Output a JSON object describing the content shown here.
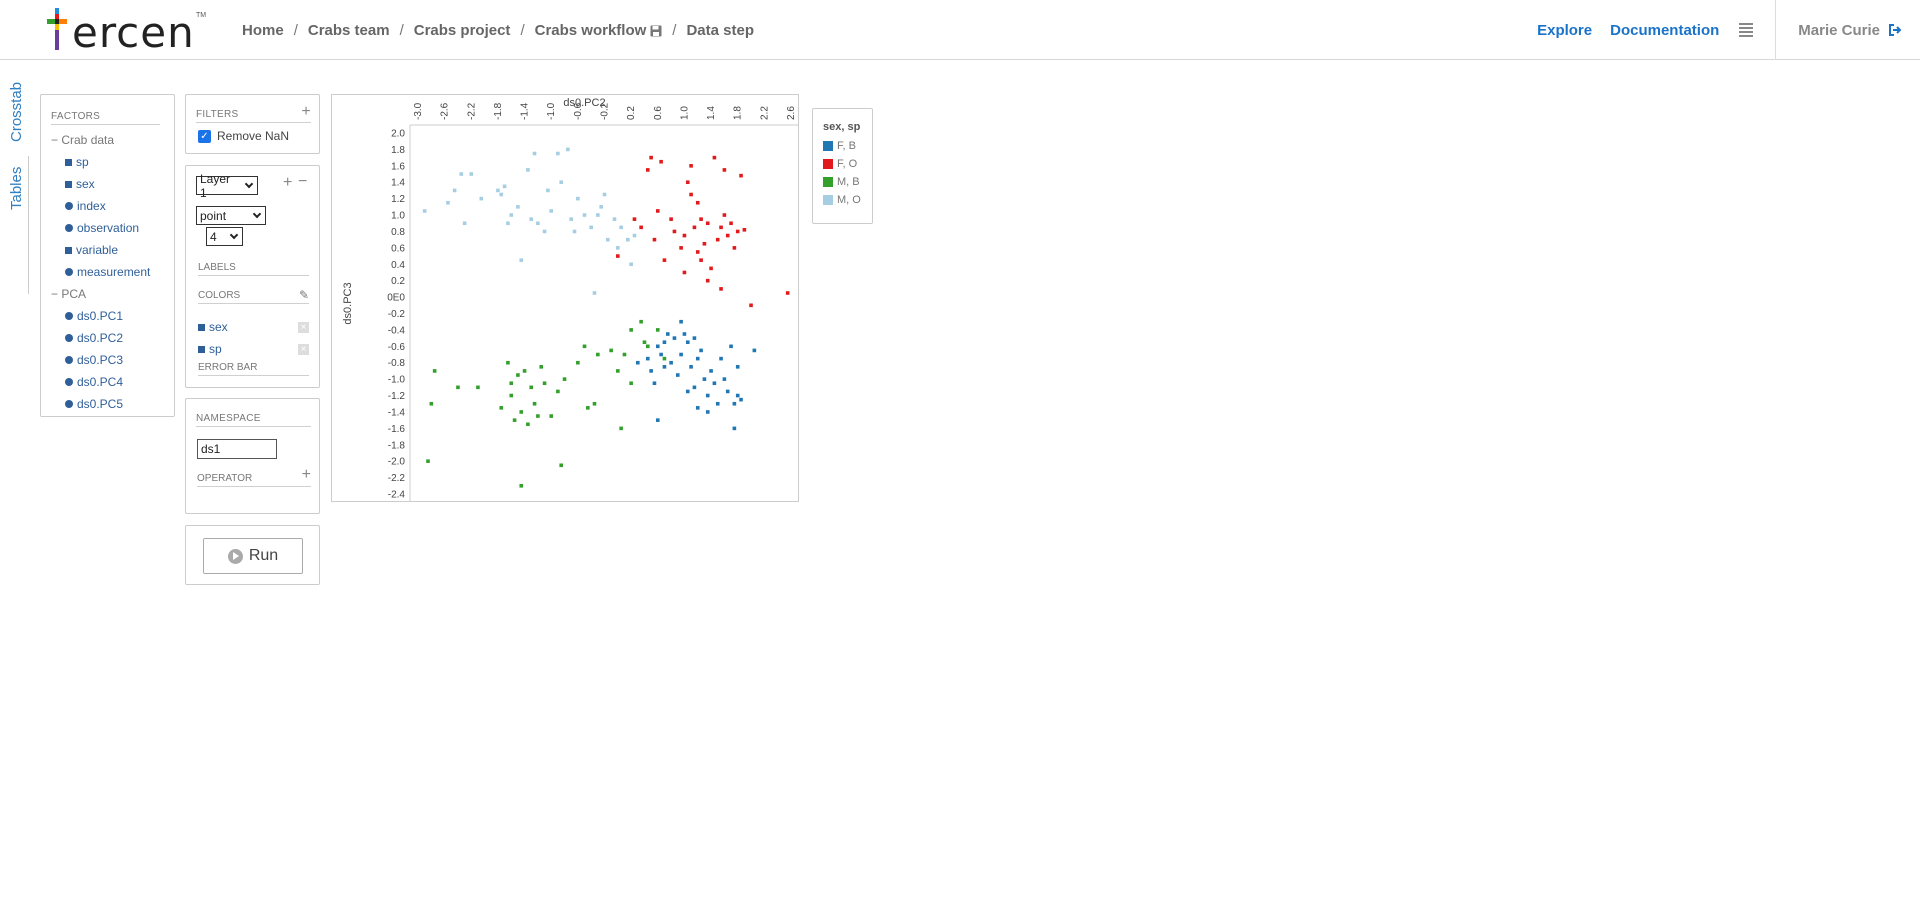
{
  "header": {
    "breadcrumb": [
      {
        "label": "Home"
      },
      {
        "label": "Crabs team"
      },
      {
        "label": "Crabs project"
      },
      {
        "label": "Crabs workflow"
      },
      {
        "label": "Data step"
      }
    ],
    "brand": "ercen",
    "brand_tm": "TM",
    "nav": {
      "explore": "Explore",
      "documentation": "Documentation"
    },
    "user": "Marie Curie"
  },
  "side_tabs": {
    "crosstab": "Crosstab",
    "tables": "Tables"
  },
  "factors": {
    "title": "FACTORS",
    "groups": [
      {
        "label": "Crab data",
        "items": [
          {
            "label": "sp",
            "kind": "square"
          },
          {
            "label": "sex",
            "kind": "square"
          },
          {
            "label": "index",
            "kind": "dot"
          },
          {
            "label": "observation",
            "kind": "dot"
          },
          {
            "label": "variable",
            "kind": "square"
          },
          {
            "label": "measurement",
            "kind": "dot"
          }
        ]
      },
      {
        "label": "PCA",
        "items": [
          {
            "label": "ds0.PC1",
            "kind": "dot"
          },
          {
            "label": "ds0.PC2",
            "kind": "dot"
          },
          {
            "label": "ds0.PC3",
            "kind": "dot"
          },
          {
            "label": "ds0.PC4",
            "kind": "dot"
          },
          {
            "label": "ds0.PC5",
            "kind": "dot"
          }
        ]
      }
    ]
  },
  "filters": {
    "title": "FILTERS",
    "remove_nan": "Remove NaN"
  },
  "layer": {
    "layer_select": "Layer 1",
    "geom_select": "point",
    "size_select": "4",
    "labels_title": "LABELS",
    "colors_title": "COLORS",
    "colors": [
      "sex",
      "sp"
    ],
    "error_bar_title": "ERROR BAR"
  },
  "namespace": {
    "title": "NAMESPACE",
    "value": "ds1",
    "operator_title": "OPERATOR"
  },
  "run": {
    "label": "Run"
  },
  "legend": {
    "title": "sex, sp",
    "items": [
      {
        "label": "F, B",
        "color": "#1f77b4"
      },
      {
        "label": "F, O",
        "color": "#e31a1c"
      },
      {
        "label": "M, B",
        "color": "#33a02c"
      },
      {
        "label": "M, O",
        "color": "#a6cee3"
      }
    ]
  },
  "chart_data": {
    "type": "scatter",
    "xlabel": "ds0.PC2",
    "ylabel": "ds0.PC3",
    "xlim": [
      -3.0,
      2.6
    ],
    "ylim": [
      -2.4,
      2.0
    ],
    "x_ticks": [
      "-3.0",
      "-2.6",
      "-2.2",
      "-1.8",
      "-1.4",
      "-1.0",
      "-0.6",
      "-0.2",
      "0.2",
      "0.6",
      "1.0",
      "1.4",
      "1.8",
      "2.2",
      "2.6"
    ],
    "y_ticks": [
      "2.0",
      "1.8",
      "1.6",
      "1.4",
      "1.2",
      "1.0",
      "0.8",
      "0.6",
      "0.4",
      "0.2",
      "0E0",
      "-0.2",
      "-0.4",
      "-0.6",
      "-0.8",
      "-1.0",
      "-1.2",
      "-1.4",
      "-1.6",
      "-1.8",
      "-2.0",
      "-2.2",
      "-2.4"
    ],
    "series": [
      {
        "name": "F, B",
        "color": "#1f77b4",
        "points": [
          [
            0.3,
            -0.8
          ],
          [
            0.45,
            -0.75
          ],
          [
            0.5,
            -0.9
          ],
          [
            0.55,
            -1.05
          ],
          [
            0.6,
            -0.6
          ],
          [
            0.65,
            -0.7
          ],
          [
            0.7,
            -0.55
          ],
          [
            0.75,
            -0.45
          ],
          [
            0.8,
            -0.8
          ],
          [
            0.85,
            -0.5
          ],
          [
            0.9,
            -0.95
          ],
          [
            0.95,
            -0.7
          ],
          [
            1.0,
            -0.45
          ],
          [
            1.05,
            -0.55
          ],
          [
            1.1,
            -0.85
          ],
          [
            1.15,
            -1.1
          ],
          [
            1.2,
            -0.75
          ],
          [
            1.25,
            -0.65
          ],
          [
            1.3,
            -1.0
          ],
          [
            1.35,
            -1.2
          ],
          [
            1.4,
            -0.9
          ],
          [
            1.45,
            -1.05
          ],
          [
            1.5,
            -1.3
          ],
          [
            1.55,
            -0.75
          ],
          [
            1.6,
            -1.0
          ],
          [
            1.65,
            -1.15
          ],
          [
            1.7,
            -0.6
          ],
          [
            1.75,
            -1.3
          ],
          [
            0.6,
            -1.5
          ],
          [
            1.2,
            -1.35
          ],
          [
            1.35,
            -1.4
          ],
          [
            1.8,
            -1.2
          ],
          [
            1.85,
            -1.25
          ],
          [
            1.8,
            -0.85
          ],
          [
            2.05,
            -0.65
          ],
          [
            1.75,
            -1.6
          ],
          [
            0.95,
            -0.3
          ],
          [
            1.15,
            -0.5
          ],
          [
            0.7,
            -0.85
          ],
          [
            1.05,
            -1.15
          ]
        ]
      },
      {
        "name": "F, O",
        "color": "#e31a1c",
        "points": [
          [
            0.0,
            0.5
          ],
          [
            0.25,
            0.95
          ],
          [
            0.45,
            1.55
          ],
          [
            0.55,
            0.7
          ],
          [
            0.6,
            1.05
          ],
          [
            0.7,
            0.45
          ],
          [
            0.8,
            0.95
          ],
          [
            0.85,
            0.8
          ],
          [
            0.95,
            0.6
          ],
          [
            1.0,
            0.3
          ],
          [
            1.05,
            1.4
          ],
          [
            1.1,
            1.25
          ],
          [
            1.15,
            0.85
          ],
          [
            1.2,
            0.55
          ],
          [
            1.25,
            0.45
          ],
          [
            1.3,
            0.65
          ],
          [
            1.35,
            0.9
          ],
          [
            1.4,
            0.35
          ],
          [
            1.5,
            0.7
          ],
          [
            1.55,
            0.85
          ],
          [
            1.6,
            1.0
          ],
          [
            1.65,
            0.75
          ],
          [
            1.7,
            0.9
          ],
          [
            1.75,
            0.6
          ],
          [
            1.8,
            0.8
          ],
          [
            1.85,
            1.48
          ],
          [
            1.9,
            0.82
          ],
          [
            2.0,
            -0.1
          ],
          [
            2.55,
            0.05
          ],
          [
            0.5,
            1.7
          ],
          [
            0.65,
            1.65
          ],
          [
            1.6,
            1.55
          ],
          [
            1.45,
            1.7
          ],
          [
            1.1,
            1.6
          ],
          [
            1.2,
            1.15
          ],
          [
            1.35,
            0.2
          ],
          [
            1.55,
            0.1
          ],
          [
            1.25,
            0.95
          ],
          [
            0.35,
            0.85
          ],
          [
            1.0,
            0.75
          ]
        ]
      },
      {
        "name": "M, B",
        "color": "#33a02c",
        "points": [
          [
            -2.85,
            -2.0
          ],
          [
            -2.8,
            -1.3
          ],
          [
            -2.75,
            -0.9
          ],
          [
            -2.4,
            -1.1
          ],
          [
            -2.1,
            -1.1
          ],
          [
            -1.75,
            -1.35
          ],
          [
            -1.65,
            -0.8
          ],
          [
            -1.6,
            -1.2
          ],
          [
            -1.55,
            -1.5
          ],
          [
            -1.5,
            -0.95
          ],
          [
            -1.45,
            -1.4
          ],
          [
            -1.4,
            -0.9
          ],
          [
            -1.35,
            -1.55
          ],
          [
            -1.3,
            -1.1
          ],
          [
            -1.25,
            -1.3
          ],
          [
            -1.2,
            -1.45
          ],
          [
            -1.15,
            -0.85
          ],
          [
            -1.1,
            -1.05
          ],
          [
            -1.0,
            -1.45
          ],
          [
            -0.9,
            -1.15
          ],
          [
            -0.85,
            -2.05
          ],
          [
            -0.8,
            -1.0
          ],
          [
            -0.6,
            -0.8
          ],
          [
            -0.5,
            -0.6
          ],
          [
            -0.45,
            -1.35
          ],
          [
            -0.35,
            -1.3
          ],
          [
            -0.3,
            -0.7
          ],
          [
            -0.1,
            -0.65
          ],
          [
            0.0,
            -0.9
          ],
          [
            0.05,
            -1.6
          ],
          [
            0.1,
            -0.7
          ],
          [
            0.2,
            -1.05
          ],
          [
            0.2,
            -0.4
          ],
          [
            0.35,
            -0.3
          ],
          [
            0.4,
            -0.55
          ],
          [
            0.45,
            -0.6
          ],
          [
            0.6,
            -0.4
          ],
          [
            0.7,
            -0.75
          ],
          [
            -1.45,
            -2.3
          ],
          [
            -1.6,
            -1.05
          ]
        ]
      },
      {
        "name": "M, O",
        "color": "#a6cee3",
        "points": [
          [
            -2.9,
            1.05
          ],
          [
            -2.55,
            1.15
          ],
          [
            -2.45,
            1.3
          ],
          [
            -2.35,
            1.5
          ],
          [
            -2.3,
            0.9
          ],
          [
            -2.2,
            1.5
          ],
          [
            -2.05,
            1.2
          ],
          [
            -1.8,
            1.3
          ],
          [
            -1.75,
            1.25
          ],
          [
            -1.7,
            1.35
          ],
          [
            -1.65,
            0.9
          ],
          [
            -1.6,
            1.0
          ],
          [
            -1.5,
            1.1
          ],
          [
            -1.45,
            0.45
          ],
          [
            -1.35,
            1.55
          ],
          [
            -1.3,
            0.95
          ],
          [
            -1.25,
            1.75
          ],
          [
            -1.2,
            0.9
          ],
          [
            -1.1,
            0.8
          ],
          [
            -1.05,
            1.3
          ],
          [
            -1.0,
            1.05
          ],
          [
            -0.9,
            1.75
          ],
          [
            -0.85,
            1.4
          ],
          [
            -0.75,
            1.8
          ],
          [
            -0.7,
            0.95
          ],
          [
            -0.65,
            0.8
          ],
          [
            -0.6,
            1.2
          ],
          [
            -0.5,
            1.0
          ],
          [
            -0.4,
            0.85
          ],
          [
            -0.3,
            1.0
          ],
          [
            -0.25,
            1.1
          ],
          [
            -0.2,
            1.25
          ],
          [
            -0.15,
            0.7
          ],
          [
            0.0,
            0.6
          ],
          [
            0.05,
            0.85
          ],
          [
            0.15,
            0.7
          ],
          [
            0.2,
            0.4
          ],
          [
            0.25,
            0.75
          ],
          [
            -0.35,
            0.05
          ],
          [
            -0.05,
            0.95
          ]
        ]
      }
    ]
  }
}
